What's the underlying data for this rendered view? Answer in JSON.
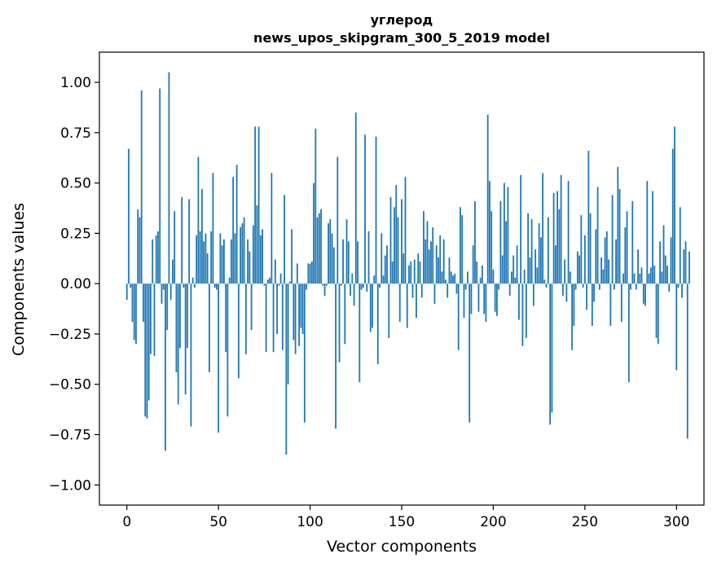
{
  "chart_data": {
    "type": "bar",
    "title": "углерод",
    "subtitle": "news_upos_skipgram_300_5_2019 model",
    "xlabel": "Vector components",
    "ylabel": "Components values",
    "xlim": [
      -15,
      315
    ],
    "ylim": [
      -1.1,
      1.15
    ],
    "xticks": [
      0,
      50,
      100,
      150,
      200,
      250,
      300
    ],
    "xtick_labels": [
      "0",
      "50",
      "100",
      "150",
      "200",
      "250",
      "300"
    ],
    "yticks": [
      1.0,
      0.75,
      0.5,
      0.25,
      0.0,
      -0.25,
      -0.5,
      -0.75,
      -1.0
    ],
    "ytick_labels": [
      "1.00",
      "0.75",
      "0.50",
      "0.25",
      "0.00",
      "−0.25",
      "−0.50",
      "−0.75",
      "−1.00"
    ],
    "bar_color": "#1f77b4",
    "values": [
      -0.08,
      0.67,
      -0.02,
      -0.19,
      -0.28,
      -0.3,
      0.37,
      0.33,
      0.96,
      -0.19,
      -0.66,
      -0.67,
      -0.58,
      -0.35,
      0.22,
      -0.36,
      0.24,
      0.26,
      0.97,
      -0.1,
      -0.03,
      -0.83,
      -0.23,
      1.05,
      -0.08,
      0.12,
      0.36,
      -0.44,
      -0.6,
      -0.32,
      0.43,
      -0.02,
      -0.55,
      -0.32,
      0.42,
      -0.71,
      0.03,
      -0.02,
      0.24,
      0.63,
      0.26,
      0.47,
      0.21,
      0.25,
      0.15,
      -0.44,
      0.26,
      0.55,
      -0.02,
      -0.03,
      -0.74,
      0.25,
      0.19,
      0.22,
      -0.34,
      -0.66,
      0.03,
      0.22,
      0.53,
      0.25,
      0.59,
      -0.47,
      0.28,
      0.3,
      0.33,
      -0.35,
      0.22,
      0.16,
      -0.23,
      0.29,
      0.78,
      0.39,
      0.78,
      0.24,
      0.27,
      -0.01,
      -0.34,
      0.02,
      0.03,
      0.55,
      -0.34,
      0.12,
      -0.25,
      -0.01,
      0.05,
      -0.33,
      0.44,
      -0.85,
      -0.5,
      0.01,
      0.27,
      -0.28,
      -0.35,
      0.1,
      -0.31,
      -0.22,
      -0.25,
      -0.69,
      -0.03,
      0.1,
      0.1,
      0.11,
      0.5,
      0.77,
      0.33,
      0.35,
      0.37,
      -0.01,
      -0.06,
      -0.01,
      0.3,
      0.32,
      0.25,
      0.18,
      -0.72,
      0.63,
      -0.39,
      -0.01,
      0.22,
      -0.3,
      0.32,
      0.21,
      -0.06,
      0.05,
      -0.11,
      0.85,
      0.21,
      -0.49,
      -0.03,
      -0.02,
      0.74,
      -0.04,
      0.26,
      -0.24,
      -0.22,
      0.04,
      0.73,
      -0.4,
      -0.02,
      0.25,
      0.04,
      0.14,
      0.19,
      -0.27,
      0.43,
      0.11,
      0.38,
      0.49,
      0.33,
      -0.19,
      0.42,
      0.15,
      0.53,
      -0.22,
      0.09,
      0.11,
      -0.07,
      0.12,
      -0.17,
      0.15,
      0.11,
      -0.07,
      0.36,
      0.22,
      0.31,
      0.17,
      0.21,
      0.28,
      -0.1,
      0.19,
      0.13,
      0.24,
      0.06,
      0.22,
      0.02,
      -0.07,
      0.13,
      0.06,
      0.04,
      0.05,
      -0.05,
      -0.33,
      0.38,
      0.34,
      -0.17,
      -0.03,
      0.06,
      -0.69,
      -0.15,
      0.19,
      0.41,
      0.11,
      -0.14,
      0.03,
      0.09,
      -0.15,
      -0.19,
      0.84,
      0.51,
      0.36,
      0.07,
      -0.14,
      -0.16,
      -0.03,
      0.41,
      0.14,
      0.5,
      0.31,
      0.48,
      -0.06,
      0.06,
      0.14,
      0.03,
      0.19,
      -0.18,
      0.54,
      -0.31,
      0.07,
      -0.27,
      0.35,
      0.13,
      0.32,
      -0.11,
      0.17,
      0.08,
      0.3,
      0.23,
      0.55,
      0.02,
      -0.02,
      0.33,
      -0.7,
      -0.64,
      0.45,
      0.19,
      0.46,
      0.37,
      0.54,
      -0.06,
      0.12,
      -0.09,
      0.51,
      0.06,
      -0.33,
      -0.21,
      -0.03,
      0.16,
      0.14,
      0.34,
      -0.02,
      0.24,
      -0.13,
      0.66,
      0.35,
      -0.21,
      -0.09,
      0.27,
      0.48,
      -0.03,
      0.13,
      0.07,
      0.23,
      0.26,
      0.12,
      -0.21,
      0.44,
      -0.03,
      0.22,
      0.58,
      0.47,
      -0.19,
      0.05,
      0.28,
      0.36,
      -0.49,
      -0.03,
      0.41,
      0.05,
      -0.03,
      0.17,
      0.05,
      0.08,
      -0.1,
      -0.11,
      0.51,
      0.05,
      0.08,
      0.46,
      0.09,
      -0.27,
      -0.3,
      0.21,
      0.06,
      0.29,
      0.14,
      0.09,
      -0.04,
      0.23,
      0.67,
      0.78,
      -0.43,
      -0.02,
      0.38,
      -0.07,
      0.17,
      0.21,
      -0.77,
      0.16
    ]
  }
}
